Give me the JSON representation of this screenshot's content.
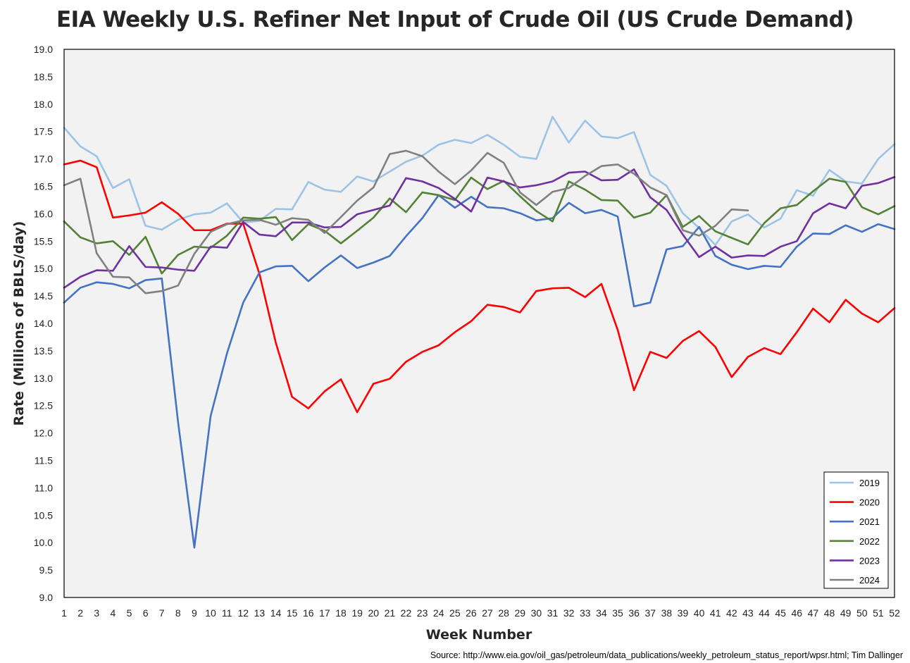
{
  "chart_data": {
    "type": "line",
    "title": "EIA Weekly U.S. Refiner Net Input of Crude Oil (US Crude Demand)",
    "xlabel": "Week Number",
    "ylabel": "Rate (Millions of BBLS/day)",
    "xlim": [
      1,
      52
    ],
    "ylim": [
      9.0,
      19.0
    ],
    "ytick_step": 0.5,
    "grid": "horizontal",
    "legend_position": "bottom-right",
    "background": "#f2f2f2",
    "source": "Source: http://www.eia.gov/oil_gas/petroleum/data_publications/weekly_petroleum_status_report/wpsr.html; Tim Dallinger",
    "x": [
      1,
      2,
      3,
      4,
      5,
      6,
      7,
      8,
      9,
      10,
      11,
      12,
      13,
      14,
      15,
      16,
      17,
      18,
      19,
      20,
      21,
      22,
      23,
      24,
      25,
      26,
      27,
      28,
      29,
      30,
      31,
      32,
      33,
      34,
      35,
      36,
      37,
      38,
      39,
      40,
      41,
      42,
      43,
      44,
      45,
      46,
      47,
      48,
      49,
      50,
      51,
      52
    ],
    "series": [
      {
        "name": "2019",
        "color": "#9dc3e6",
        "values": [
          17.57,
          17.23,
          17.05,
          16.47,
          16.63,
          15.78,
          15.71,
          15.89,
          15.99,
          16.02,
          16.19,
          15.84,
          15.87,
          16.09,
          16.08,
          16.58,
          16.44,
          16.4,
          16.68,
          16.59,
          16.77,
          16.95,
          17.06,
          17.26,
          17.35,
          17.29,
          17.44,
          17.26,
          17.04,
          17.0,
          17.77,
          17.3,
          17.7,
          17.41,
          17.38,
          17.49,
          16.71,
          16.51,
          16.01,
          15.74,
          15.43,
          15.86,
          15.99,
          15.75,
          15.91,
          16.43,
          16.33,
          16.8,
          16.59,
          16.55,
          17.0,
          17.27
        ]
      },
      {
        "name": "2020",
        "color": "#ff0000",
        "values": [
          16.9,
          16.97,
          16.85,
          15.93,
          15.97,
          16.02,
          16.21,
          16.0,
          15.7,
          15.7,
          15.82,
          15.82,
          14.9,
          13.65,
          12.66,
          12.45,
          12.76,
          12.98,
          12.38,
          12.9,
          12.99,
          13.3,
          13.48,
          13.6,
          13.84,
          14.04,
          14.34,
          14.3,
          14.2,
          14.59,
          14.64,
          14.65,
          14.48,
          14.72,
          13.88,
          12.78,
          13.48,
          13.37,
          13.68,
          13.86,
          13.57,
          13.02,
          13.39,
          13.55,
          13.44,
          13.84,
          14.27,
          14.02,
          14.43,
          14.18,
          14.02,
          14.28
        ]
      },
      {
        "name": "2021",
        "color": "#4472c4",
        "values": [
          14.38,
          14.65,
          14.75,
          14.72,
          14.64,
          14.79,
          14.82,
          12.2,
          9.91,
          12.31,
          13.45,
          14.38,
          14.93,
          15.04,
          15.05,
          14.77,
          15.02,
          15.24,
          15.01,
          15.11,
          15.23,
          15.59,
          15.92,
          16.34,
          16.11,
          16.31,
          16.12,
          16.1,
          16.01,
          15.88,
          15.92,
          16.2,
          16.01,
          16.07,
          15.95,
          14.31,
          14.38,
          15.35,
          15.41,
          15.76,
          15.23,
          15.07,
          14.99,
          15.05,
          15.03,
          15.4,
          15.64,
          15.63,
          15.79,
          15.67,
          15.81,
          15.72
        ]
      },
      {
        "name": "2022",
        "color": "#548235",
        "values": [
          15.86,
          15.57,
          15.46,
          15.5,
          15.25,
          15.58,
          14.91,
          15.25,
          15.4,
          15.38,
          15.6,
          15.93,
          15.91,
          15.94,
          15.52,
          15.81,
          15.69,
          15.46,
          15.69,
          15.93,
          16.28,
          16.03,
          16.39,
          16.34,
          16.25,
          16.66,
          16.45,
          16.6,
          16.32,
          16.05,
          15.86,
          16.59,
          16.44,
          16.25,
          16.24,
          15.93,
          16.02,
          16.34,
          15.76,
          15.96,
          15.68,
          15.56,
          15.44,
          15.83,
          16.1,
          16.16,
          16.41,
          16.64,
          16.58,
          16.12,
          15.99,
          16.14
        ]
      },
      {
        "name": "2023",
        "color": "#7030a0",
        "values": [
          14.65,
          14.85,
          14.97,
          14.96,
          15.41,
          15.03,
          15.02,
          14.98,
          14.96,
          15.4,
          15.38,
          15.85,
          15.62,
          15.59,
          15.84,
          15.84,
          15.75,
          15.76,
          15.99,
          16.07,
          16.15,
          16.65,
          16.59,
          16.47,
          16.27,
          16.04,
          16.66,
          16.59,
          16.48,
          16.52,
          16.59,
          16.75,
          16.77,
          16.61,
          16.62,
          16.81,
          16.3,
          16.07,
          15.62,
          15.21,
          15.4,
          15.2,
          15.24,
          15.23,
          15.4,
          15.5,
          16.01,
          16.19,
          16.1,
          16.51,
          16.56,
          16.67
        ]
      },
      {
        "name": "2024",
        "color": "#808080",
        "values": [
          16.52,
          16.64,
          15.28,
          14.85,
          14.84,
          14.55,
          14.59,
          14.69,
          15.27,
          15.67,
          15.81,
          15.88,
          15.89,
          15.8,
          15.92,
          15.89,
          15.65,
          15.94,
          16.24,
          16.48,
          17.09,
          17.15,
          17.05,
          16.77,
          16.54,
          16.79,
          17.11,
          16.93,
          16.39,
          16.16,
          16.4,
          16.47,
          16.69,
          16.87,
          16.9,
          16.73,
          16.48,
          16.34,
          15.7,
          15.6,
          15.78,
          16.08,
          16.06,
          null,
          null,
          null,
          null,
          null,
          null,
          null,
          null,
          null
        ]
      }
    ]
  }
}
